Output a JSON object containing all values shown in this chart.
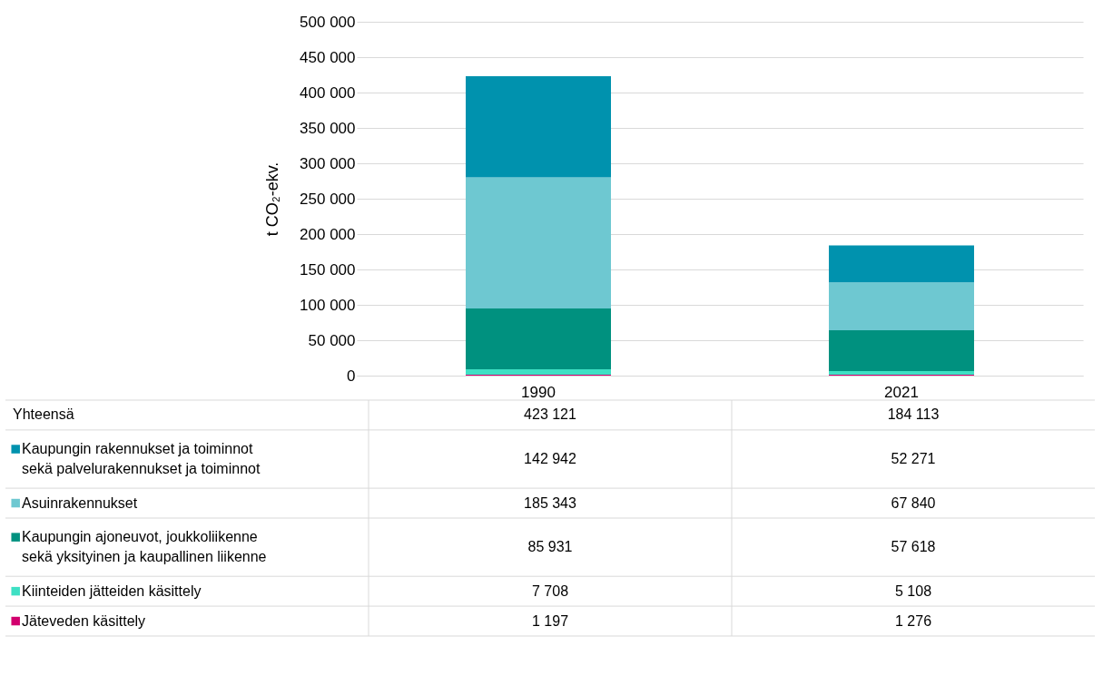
{
  "chart_data": {
    "type": "bar",
    "stacked": true,
    "ylabel": "t CO₂-ekv.",
    "categories": [
      "1990",
      "2021"
    ],
    "series": [
      {
        "name": "Jäteveden käsittely",
        "color": "#d2006e",
        "values": [
          1197,
          1276
        ]
      },
      {
        "name": "Kiinteiden jätteiden käsittely",
        "color": "#3ee0c4",
        "values": [
          7708,
          5108
        ]
      },
      {
        "name": "Kaupungin ajoneuvot, joukkoliikenne sekä yksityinen ja kaupallinen liikenne",
        "color": "#00917f",
        "values": [
          85931,
          57618
        ]
      },
      {
        "name": "Asuinrakennukset",
        "color": "#6ec8d1",
        "values": [
          185343,
          67840
        ]
      },
      {
        "name": "Kaupungin rakennukset ja toiminnot sekä palvelurakennukset ja toiminnot",
        "color": "#0092ae",
        "values": [
          142942,
          52271
        ]
      }
    ],
    "ylim": [
      0,
      500000
    ],
    "yticks": [
      {
        "value": 0,
        "label": "0"
      },
      {
        "value": 50000,
        "label": "50 000"
      },
      {
        "value": 100000,
        "label": "100 000"
      },
      {
        "value": 150000,
        "label": "150 000"
      },
      {
        "value": 200000,
        "label": "200 000"
      },
      {
        "value": 250000,
        "label": "250 000"
      },
      {
        "value": 300000,
        "label": "300 000"
      },
      {
        "value": 350000,
        "label": "350 000"
      },
      {
        "value": 400000,
        "label": "400 000"
      },
      {
        "value": 450000,
        "label": "450 000"
      },
      {
        "value": 500000,
        "label": "500 000"
      }
    ],
    "grid": "y",
    "legend": "bottom",
    "data_labels": true,
    "totals": [
      "423 121",
      "184 113"
    ],
    "annotations": [
      "Yhteensä"
    ]
  }
}
